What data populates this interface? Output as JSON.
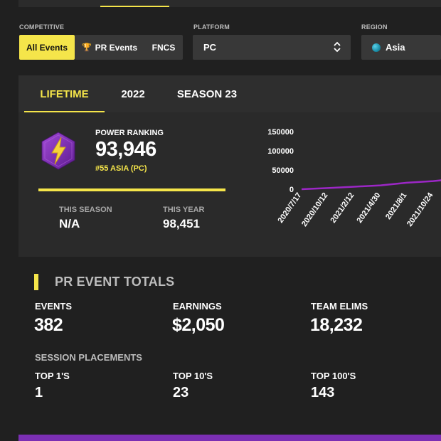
{
  "filters": {
    "competitive": {
      "label": "COMPETITIVE",
      "options": [
        {
          "label": "All Events",
          "active": true,
          "icon": ""
        },
        {
          "label": "PR Events",
          "active": false,
          "icon": "trophy-icon"
        },
        {
          "label": "FNCS",
          "active": false,
          "icon": ""
        }
      ]
    },
    "platform": {
      "label": "PLATFORM",
      "value": "PC"
    },
    "region": {
      "label": "REGION",
      "value": "Asia",
      "icon": "globe-icon"
    }
  },
  "tabs": [
    {
      "label": "LIFETIME",
      "active": true
    },
    {
      "label": "2022",
      "active": false
    },
    {
      "label": "SEASON 23",
      "active": false
    }
  ],
  "power_ranking": {
    "label": "POWER RANKING",
    "value": "93,946",
    "rank": "#55 ASIA (PC)",
    "progress": 1.0,
    "badge_icon": "lightning-hexagon-icon"
  },
  "period_stats": [
    {
      "label": "THIS SEASON",
      "value": "N/A"
    },
    {
      "label": "THIS YEAR",
      "value": "98,451"
    }
  ],
  "chart_data": {
    "type": "line",
    "x": [
      "2020/7/17",
      "2020/10/12",
      "2021/2/12",
      "2021/4/30",
      "2021/8/1",
      "2021/10/24"
    ],
    "y_ticks": [
      0,
      50000,
      100000,
      150000
    ],
    "ylim": [
      0,
      150000
    ],
    "series": [
      {
        "values": [
          0,
          3000,
          6500,
          10000,
          17000,
          21000
        ],
        "color": "#9c27c6"
      }
    ],
    "grid": false
  },
  "totals": {
    "title": "PR EVENT TOTALS",
    "items": [
      {
        "label": "EVENTS",
        "value": "382"
      },
      {
        "label": "EARNINGS",
        "value": "$2,050"
      },
      {
        "label": "TEAM ELIMS",
        "value": "18,232"
      }
    ],
    "session_label": "SESSION PLACEMENTS",
    "placements": [
      {
        "label": "TOP 1'S",
        "value": "1"
      },
      {
        "label": "TOP 10'S",
        "value": "23"
      },
      {
        "label": "TOP 100'S",
        "value": "143"
      }
    ]
  },
  "colors": {
    "accent": "#f5e54a",
    "purple": "#7b2fb3",
    "line": "#9c27c6"
  }
}
